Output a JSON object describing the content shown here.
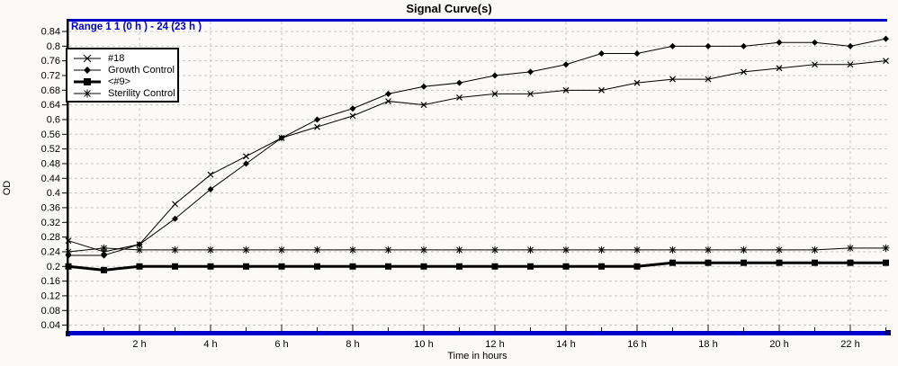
{
  "header": {
    "range_label": "Range 1 1 (0 h ) - 24 (23 h )"
  },
  "colors": {
    "accent_blue": "#0000cc",
    "border_cap_navy": "#000080",
    "grid_gray": "#c6c6c6",
    "series_black": "#000000",
    "background": "#fbfaf8"
  },
  "chart_data": {
    "type": "line",
    "title": "Signal Curve(s)",
    "xlabel": "Time in hours",
    "ylabel": "OD",
    "grid": true,
    "legend_position": "top-left",
    "xlim_hours": [
      0,
      23
    ],
    "ylim": [
      0.02,
      0.86
    ],
    "x": [
      0,
      1,
      2,
      3,
      4,
      5,
      6,
      7,
      8,
      9,
      10,
      11,
      12,
      13,
      14,
      15,
      16,
      17,
      18,
      19,
      20,
      21,
      22,
      23
    ],
    "x_tick_hours": [
      2,
      4,
      6,
      8,
      10,
      12,
      14,
      16,
      18,
      20,
      22
    ],
    "x_tick_labels": [
      "2 h",
      "4 h",
      "6 h",
      "8 h",
      "10 h",
      "12 h",
      "14 h",
      "16 h",
      "18 h",
      "20 h",
      "22 h"
    ],
    "y_tick_values": [
      0.84,
      0.8,
      0.76,
      0.72,
      0.68,
      0.64,
      0.6,
      0.56,
      0.52,
      0.48,
      0.44,
      0.4,
      0.36,
      0.32,
      0.28,
      0.24,
      0.2,
      0.16,
      0.12,
      0.08,
      0.04
    ],
    "y_tick_labels": [
      "0.84",
      "0.8",
      "0.76",
      "0.72",
      "0.68",
      "0.64",
      "0.6",
      "0.56",
      "0.52",
      "0.48",
      "0.44",
      "0.4",
      "0.36",
      "0.32",
      "0.28",
      "0.24",
      "0.2",
      "0.16",
      "0.12",
      "0.08",
      "0.04"
    ],
    "series": [
      {
        "name": "#18",
        "marker": "x",
        "line_width": 1,
        "values": [
          0.27,
          0.24,
          0.26,
          0.37,
          0.45,
          0.5,
          0.55,
          0.58,
          0.61,
          0.65,
          0.64,
          0.66,
          0.67,
          0.67,
          0.68,
          0.68,
          0.7,
          0.71,
          0.71,
          0.73,
          0.74,
          0.75,
          0.75,
          0.76
        ]
      },
      {
        "name": "Growth Control",
        "marker": "diamond",
        "line_width": 1,
        "values": [
          0.23,
          0.23,
          0.26,
          0.33,
          0.41,
          0.48,
          0.55,
          0.6,
          0.63,
          0.67,
          0.69,
          0.7,
          0.72,
          0.73,
          0.75,
          0.78,
          0.78,
          0.8,
          0.8,
          0.8,
          0.81,
          0.81,
          0.8,
          0.82
        ]
      },
      {
        "name": "<#9>",
        "marker": "square",
        "line_width": 3,
        "values": [
          0.2,
          0.19,
          0.2,
          0.2,
          0.2,
          0.2,
          0.2,
          0.2,
          0.2,
          0.2,
          0.2,
          0.2,
          0.2,
          0.2,
          0.2,
          0.2,
          0.2,
          0.21,
          0.21,
          0.21,
          0.21,
          0.21,
          0.21,
          0.21
        ]
      },
      {
        "name": "Sterility Control",
        "marker": "asterisk",
        "line_width": 1,
        "values": [
          0.24,
          0.25,
          0.245,
          0.245,
          0.245,
          0.245,
          0.245,
          0.245,
          0.245,
          0.245,
          0.245,
          0.245,
          0.245,
          0.245,
          0.245,
          0.245,
          0.245,
          0.245,
          0.245,
          0.245,
          0.245,
          0.245,
          0.25,
          0.25
        ]
      }
    ]
  }
}
